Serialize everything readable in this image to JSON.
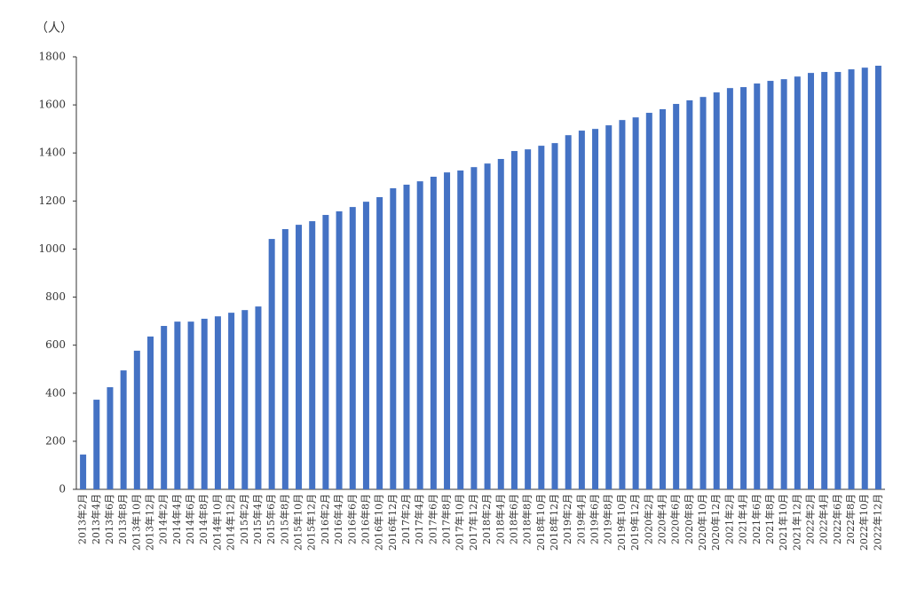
{
  "chart_data": {
    "type": "bar",
    "y_label": "（人）",
    "categories": [
      "2013年2月",
      "2013年4月",
      "2013年6月",
      "2013年8月",
      "2013年10月",
      "2013年12月",
      "2014年2月",
      "2014年4月",
      "2014年6月",
      "2014年8月",
      "2014年10月",
      "2014年12月",
      "2015年2月",
      "2015年4月",
      "2015年6月",
      "2015年8月",
      "2015年10月",
      "2015年12月",
      "2016年2月",
      "2016年4月",
      "2016年6月",
      "2016年8月",
      "2016年10月",
      "2016年12月",
      "2017年2月",
      "2017年4月",
      "2017年6月",
      "2017年8月",
      "2017年10月",
      "2017年12月",
      "2018年2月",
      "2018年4月",
      "2018年6月",
      "2018年8月",
      "2018年10月",
      "2018年12月",
      "2019年2月",
      "2019年4月",
      "2019年6月",
      "2019年8月",
      "2019年10月",
      "2019年12月",
      "2020年2月",
      "2020年4月",
      "2020年6月",
      "2020年8月",
      "2020年10月",
      "2020年12月",
      "2021年2月",
      "2021年4月",
      "2021年6月",
      "2021年8月",
      "2021年10月",
      "2021年12月",
      "2022年2月",
      "2022年4月",
      "2022年6月",
      "2022年8月",
      "2022年10月",
      "2022年12月"
    ],
    "values": [
      145,
      373,
      425,
      495,
      577,
      636,
      680,
      698,
      698,
      710,
      720,
      735,
      746,
      761,
      1042,
      1083,
      1101,
      1116,
      1142,
      1157,
      1175,
      1197,
      1216,
      1253,
      1268,
      1282,
      1301,
      1319,
      1327,
      1341,
      1356,
      1375,
      1408,
      1415,
      1430,
      1441,
      1474,
      1493,
      1500,
      1515,
      1537,
      1548,
      1567,
      1582,
      1604,
      1619,
      1633,
      1652,
      1670,
      1674,
      1689,
      1700,
      1707,
      1718,
      1733,
      1737,
      1737,
      1748,
      1755,
      1763
    ],
    "color": "#4472c4",
    "ylim": [
      0,
      1800
    ],
    "yticks": [
      0,
      200,
      400,
      600,
      800,
      1000,
      1200,
      1400,
      1600,
      1800
    ],
    "grid": false
  }
}
